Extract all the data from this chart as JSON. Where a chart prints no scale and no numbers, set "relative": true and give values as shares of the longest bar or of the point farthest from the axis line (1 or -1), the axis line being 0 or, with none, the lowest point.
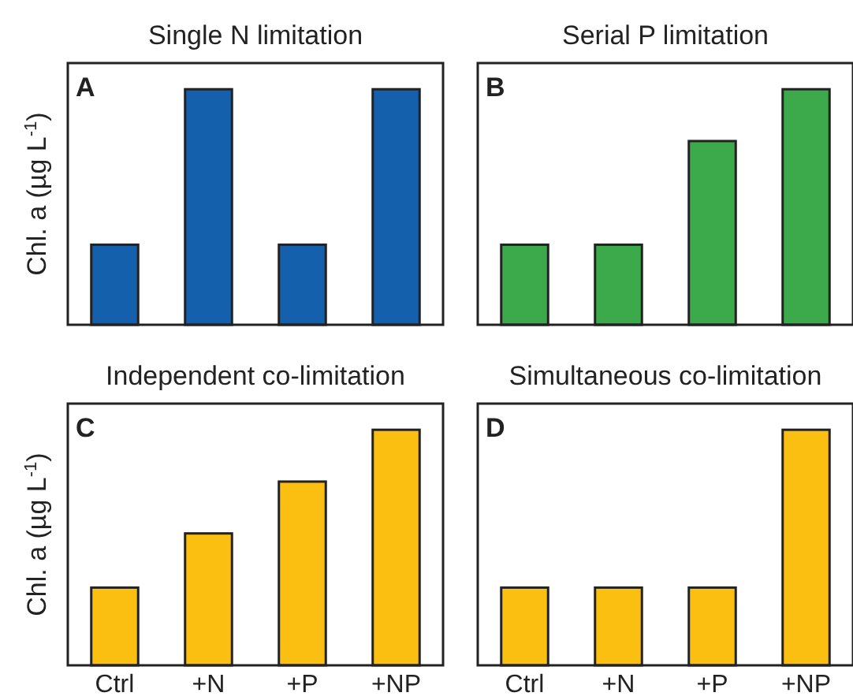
{
  "chart_data": [
    {
      "type": "bar",
      "title": "Single N limitation",
      "ylabel": "Chl. a (µg L$^{-1}$)",
      "annotations": [
        "A"
      ],
      "relative": true,
      "categories": [
        null,
        null,
        null,
        null
      ],
      "values": [
        0.34,
        1,
        0.34,
        1
      ],
      "color": "#1560ac",
      "tick_labels": false
    },
    {
      "type": "bar",
      "title": "Serial P limitation",
      "annotations": [
        "B"
      ],
      "relative": true,
      "categories": [
        null,
        null,
        null,
        null
      ],
      "values": [
        0.34,
        0.34,
        0.78,
        1
      ],
      "color": "#3caa4a",
      "tick_labels": false
    },
    {
      "type": "bar",
      "title": "Independent co-limitation",
      "ylabel": "Chl. a (µg L$^{-1}$)",
      "annotations": [
        "C"
      ],
      "relative": true,
      "categories": [
        "Ctrl",
        "+N",
        "+P",
        "+NP"
      ],
      "values": [
        0.33,
        0.56,
        0.78,
        1
      ],
      "color": "#fbbf12",
      "tick_labels": "x"
    },
    {
      "type": "bar",
      "title": "Simultaneous co-limitation",
      "annotations": [
        "D"
      ],
      "relative": true,
      "categories": [
        "Ctrl",
        "+N",
        "+P",
        "+NP"
      ],
      "values": [
        0.33,
        0.33,
        0.33,
        1
      ],
      "color": "#fbbf12",
      "tick_labels": "x"
    }
  ]
}
